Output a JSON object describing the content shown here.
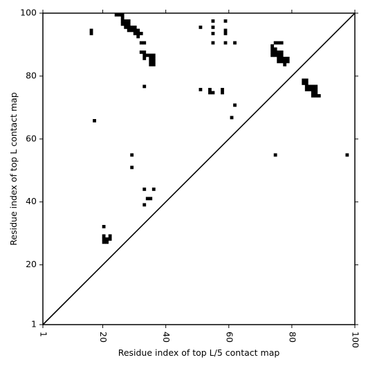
{
  "chart_data": {
    "type": "heatmap",
    "title": "",
    "xlabel": "Residue index of top L/5 contact map",
    "ylabel": "Residue index of top L contact map",
    "xlim": [
      1,
      100
    ],
    "ylim": [
      1,
      100
    ],
    "x_ticks": [
      1,
      20,
      40,
      60,
      80,
      100
    ],
    "x_tick_labels": [
      "1",
      "20",
      "40",
      "60",
      "80",
      "100"
    ],
    "y_ticks": [
      1,
      20,
      40,
      60,
      80,
      100
    ],
    "y_tick_labels": [
      "1",
      "20",
      "40",
      "60",
      "80",
      "100"
    ],
    "x_tick_rotation_deg": -90,
    "grid": false,
    "legend": "none",
    "diagonal": {
      "from": [
        1,
        1
      ],
      "to": [
        100,
        100
      ]
    },
    "cell_color": "#000000",
    "background_color": "#ffffff",
    "upper_left_contacts_top_L": [
      [
        16,
        94
      ],
      [
        16,
        95
      ],
      [
        24,
        100
      ],
      [
        25,
        100
      ],
      [
        26,
        99
      ],
      [
        26,
        100
      ],
      [
        26,
        98
      ],
      [
        27,
        98
      ],
      [
        28,
        98
      ],
      [
        26,
        97
      ],
      [
        27,
        97
      ],
      [
        28,
        97
      ],
      [
        27,
        96
      ],
      [
        28,
        96
      ],
      [
        29,
        96
      ],
      [
        30,
        96
      ],
      [
        28,
        95
      ],
      [
        29,
        95
      ],
      [
        30,
        95
      ],
      [
        31,
        95
      ],
      [
        30,
        94
      ],
      [
        31,
        94
      ],
      [
        32,
        94
      ],
      [
        31,
        93
      ],
      [
        32,
        91
      ],
      [
        33,
        91
      ],
      [
        32,
        88
      ],
      [
        33,
        88
      ],
      [
        33,
        87
      ],
      [
        34,
        87
      ],
      [
        35,
        87
      ],
      [
        36,
        87
      ],
      [
        33,
        86
      ],
      [
        35,
        86
      ],
      [
        36,
        86
      ],
      [
        35,
        85
      ],
      [
        36,
        85
      ],
      [
        35,
        84
      ],
      [
        36,
        84
      ],
      [
        33,
        77
      ],
      [
        51,
        96
      ],
      [
        55,
        98
      ],
      [
        59,
        98
      ],
      [
        55,
        96
      ],
      [
        55,
        94
      ],
      [
        59,
        95
      ],
      [
        59,
        94
      ],
      [
        55,
        91
      ],
      [
        59,
        91
      ],
      [
        62,
        91
      ],
      [
        51,
        76
      ],
      [
        54,
        76
      ],
      [
        54,
        75
      ],
      [
        55,
        75
      ],
      [
        58,
        76
      ],
      [
        58,
        75
      ],
      [
        62,
        71
      ],
      [
        61,
        67
      ],
      [
        75,
        91
      ],
      [
        76,
        91
      ],
      [
        77,
        91
      ],
      [
        74,
        90
      ],
      [
        74,
        89
      ],
      [
        75,
        89
      ],
      [
        74,
        88
      ],
      [
        75,
        88
      ],
      [
        76,
        88
      ],
      [
        77,
        88
      ],
      [
        74,
        87
      ],
      [
        75,
        87
      ],
      [
        76,
        87
      ],
      [
        77,
        87
      ],
      [
        76,
        86
      ],
      [
        77,
        86
      ],
      [
        78,
        86
      ],
      [
        79,
        86
      ],
      [
        76,
        85
      ],
      [
        77,
        85
      ],
      [
        78,
        85
      ],
      [
        79,
        85
      ],
      [
        78,
        84
      ],
      [
        84,
        79
      ],
      [
        85,
        79
      ],
      [
        84,
        78
      ],
      [
        85,
        78
      ],
      [
        85,
        77
      ],
      [
        86,
        77
      ],
      [
        87,
        77
      ],
      [
        88,
        77
      ],
      [
        85,
        76
      ],
      [
        86,
        76
      ],
      [
        87,
        76
      ],
      [
        88,
        76
      ],
      [
        87,
        75
      ],
      [
        88,
        75
      ],
      [
        87,
        74
      ],
      [
        88,
        74
      ],
      [
        89,
        74
      ],
      [
        17,
        66
      ],
      [
        29,
        55
      ],
      [
        29,
        51
      ],
      [
        75,
        55
      ],
      [
        98,
        55
      ],
      [
        33,
        44
      ],
      [
        36,
        44
      ],
      [
        34,
        41
      ],
      [
        35,
        41
      ],
      [
        33,
        39
      ],
      [
        20,
        32
      ],
      [
        20,
        29
      ],
      [
        22,
        29
      ],
      [
        20,
        28
      ],
      [
        21,
        28
      ],
      [
        22,
        28
      ],
      [
        20,
        27
      ],
      [
        21,
        27
      ]
    ]
  }
}
